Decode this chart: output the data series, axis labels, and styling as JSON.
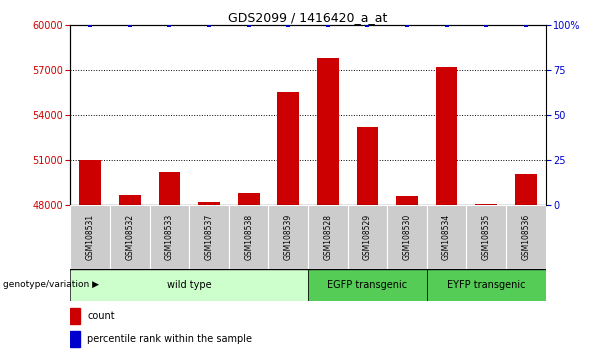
{
  "title": "GDS2099 / 1416420_a_at",
  "samples": [
    "GSM108531",
    "GSM108532",
    "GSM108533",
    "GSM108537",
    "GSM108538",
    "GSM108539",
    "GSM108528",
    "GSM108529",
    "GSM108530",
    "GSM108534",
    "GSM108535",
    "GSM108536"
  ],
  "counts": [
    51000,
    48700,
    50200,
    48200,
    48800,
    55500,
    57800,
    53200,
    48600,
    57200,
    48100,
    50100
  ],
  "perc_vals": [
    100,
    100,
    100,
    100,
    100,
    100,
    100,
    100,
    100,
    100,
    100,
    100
  ],
  "ylim_left": [
    48000,
    60000
  ],
  "ylim_right": [
    0,
    100
  ],
  "yticks_left": [
    48000,
    51000,
    54000,
    57000,
    60000
  ],
  "yticks_right": [
    0,
    25,
    50,
    75,
    100
  ],
  "ytick_labels_right": [
    "0",
    "25",
    "50",
    "75",
    "100%"
  ],
  "bar_color": "#cc0000",
  "scatter_color": "#0000cc",
  "groups": [
    {
      "label": "wild type",
      "start": 0,
      "end": 6,
      "color": "#ccffcc"
    },
    {
      "label": "EGFP transgenic",
      "start": 6,
      "end": 9,
      "color": "#55cc55"
    },
    {
      "label": "EYFP transgenic",
      "start": 9,
      "end": 12,
      "color": "#55cc55"
    }
  ],
  "legend_count_color": "#cc0000",
  "legend_percentile_color": "#0000cc",
  "xlabel_group": "genotype/variation",
  "dotted_grid_color": "#000000",
  "sample_bg_color": "#cccccc",
  "spine_color": "#000000"
}
